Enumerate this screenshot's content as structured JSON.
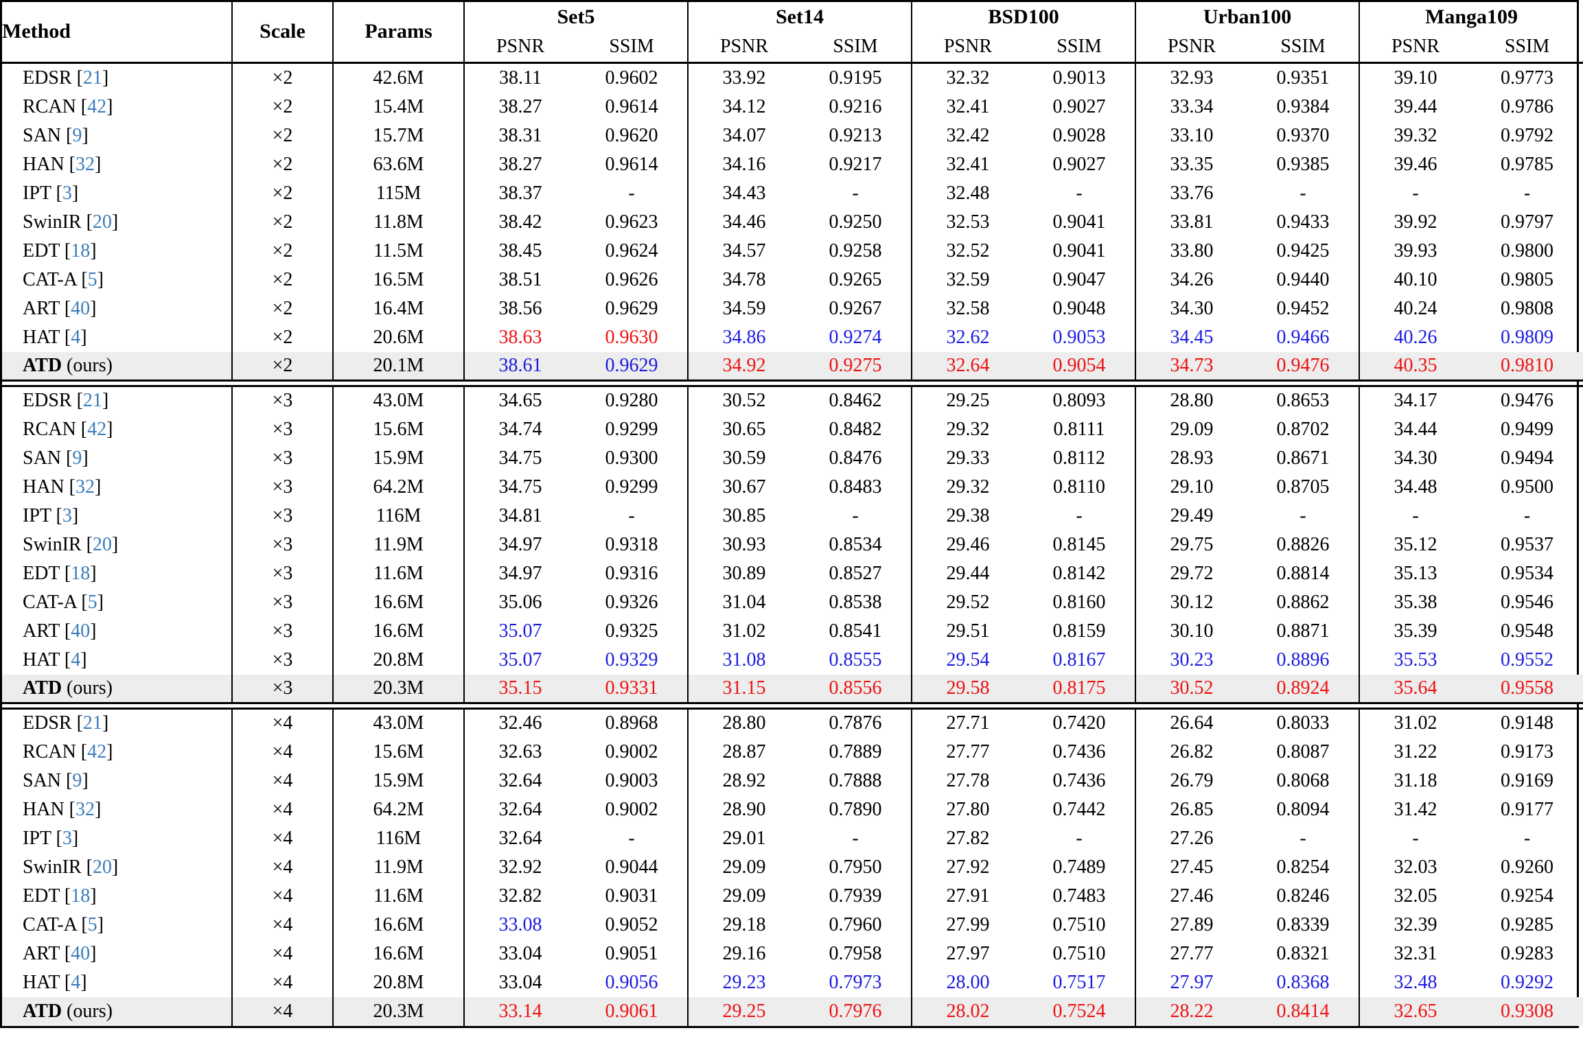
{
  "table": {
    "columns": {
      "method": "Method",
      "scale": "Scale",
      "params": "Params"
    },
    "datasets": [
      "Set5",
      "Set14",
      "BSD100",
      "Urban100",
      "Manga109"
    ],
    "metric_headers": [
      "PSNR",
      "SSIM"
    ],
    "ours_suffix": "(ours)",
    "colors": {
      "best": "#ee1111",
      "second_best": "#1b1be0",
      "citation": "#3b7cba",
      "ours_row_bg": "#ededed"
    },
    "blocks": [
      {
        "scale": "×2",
        "rows": [
          {
            "method": "EDSR",
            "cite": "21",
            "params": "42.6M",
            "values": [
              "38.11",
              "0.9602",
              "33.92",
              "0.9195",
              "32.32",
              "0.9013",
              "32.93",
              "0.9351",
              "39.10",
              "0.9773"
            ],
            "colors": "kkkkkkkkkk"
          },
          {
            "method": "RCAN",
            "cite": "42",
            "params": "15.4M",
            "values": [
              "38.27",
              "0.9614",
              "34.12",
              "0.9216",
              "32.41",
              "0.9027",
              "33.34",
              "0.9384",
              "39.44",
              "0.9786"
            ],
            "colors": "kkkkkkkkkk"
          },
          {
            "method": "SAN",
            "cite": "9",
            "params": "15.7M",
            "values": [
              "38.31",
              "0.9620",
              "34.07",
              "0.9213",
              "32.42",
              "0.9028",
              "33.10",
              "0.9370",
              "39.32",
              "0.9792"
            ],
            "colors": "kkkkkkkkkk"
          },
          {
            "method": "HAN",
            "cite": "32",
            "params": "63.6M",
            "values": [
              "38.27",
              "0.9614",
              "34.16",
              "0.9217",
              "32.41",
              "0.9027",
              "33.35",
              "0.9385",
              "39.46",
              "0.9785"
            ],
            "colors": "kkkkkkkkkk"
          },
          {
            "method": "IPT",
            "cite": "3",
            "params": "115M",
            "values": [
              "38.37",
              "-",
              "34.43",
              "-",
              "32.48",
              "-",
              "33.76",
              "-",
              "-",
              "-"
            ],
            "colors": "kkkkkkkkkk"
          },
          {
            "method": "SwinIR",
            "cite": "20",
            "params": "11.8M",
            "values": [
              "38.42",
              "0.9623",
              "34.46",
              "0.9250",
              "32.53",
              "0.9041",
              "33.81",
              "0.9433",
              "39.92",
              "0.9797"
            ],
            "colors": "kkkkkkkkkk"
          },
          {
            "method": "EDT",
            "cite": "18",
            "params": "11.5M",
            "values": [
              "38.45",
              "0.9624",
              "34.57",
              "0.9258",
              "32.52",
              "0.9041",
              "33.80",
              "0.9425",
              "39.93",
              "0.9800"
            ],
            "colors": "kkkkkkkkkk"
          },
          {
            "method": "CAT-A",
            "cite": "5",
            "params": "16.5M",
            "values": [
              "38.51",
              "0.9626",
              "34.78",
              "0.9265",
              "32.59",
              "0.9047",
              "34.26",
              "0.9440",
              "40.10",
              "0.9805"
            ],
            "colors": "kkkkkkkkkk"
          },
          {
            "method": "ART",
            "cite": "40",
            "params": "16.4M",
            "values": [
              "38.56",
              "0.9629",
              "34.59",
              "0.9267",
              "32.58",
              "0.9048",
              "34.30",
              "0.9452",
              "40.24",
              "0.9808"
            ],
            "colors": "kkkkkkkkkk"
          },
          {
            "method": "HAT",
            "cite": "4",
            "params": "20.6M",
            "values": [
              "38.63",
              "0.9630",
              "34.86",
              "0.9274",
              "32.62",
              "0.9053",
              "34.45",
              "0.9466",
              "40.26",
              "0.9809"
            ],
            "colors": "rrbbbbbbbb"
          },
          {
            "method": "ATD",
            "ours": true,
            "params": "20.1M",
            "values": [
              "38.61",
              "0.9629",
              "34.92",
              "0.9275",
              "32.64",
              "0.9054",
              "34.73",
              "0.9476",
              "40.35",
              "0.9810"
            ],
            "colors": "bbrrrrrrrr"
          }
        ]
      },
      {
        "scale": "×3",
        "rows": [
          {
            "method": "EDSR",
            "cite": "21",
            "params": "43.0M",
            "values": [
              "34.65",
              "0.9280",
              "30.52",
              "0.8462",
              "29.25",
              "0.8093",
              "28.80",
              "0.8653",
              "34.17",
              "0.9476"
            ],
            "colors": "kkkkkkkkkk"
          },
          {
            "method": "RCAN",
            "cite": "42",
            "params": "15.6M",
            "values": [
              "34.74",
              "0.9299",
              "30.65",
              "0.8482",
              "29.32",
              "0.8111",
              "29.09",
              "0.8702",
              "34.44",
              "0.9499"
            ],
            "colors": "kkkkkkkkkk"
          },
          {
            "method": "SAN",
            "cite": "9",
            "params": "15.9M",
            "values": [
              "34.75",
              "0.9300",
              "30.59",
              "0.8476",
              "29.33",
              "0.8112",
              "28.93",
              "0.8671",
              "34.30",
              "0.9494"
            ],
            "colors": "kkkkkkkkkk"
          },
          {
            "method": "HAN",
            "cite": "32",
            "params": "64.2M",
            "values": [
              "34.75",
              "0.9299",
              "30.67",
              "0.8483",
              "29.32",
              "0.8110",
              "29.10",
              "0.8705",
              "34.48",
              "0.9500"
            ],
            "colors": "kkkkkkkkkk"
          },
          {
            "method": "IPT",
            "cite": "3",
            "params": "116M",
            "values": [
              "34.81",
              "-",
              "30.85",
              "-",
              "29.38",
              "-",
              "29.49",
              "-",
              "-",
              "-"
            ],
            "colors": "kkkkkkkkkk"
          },
          {
            "method": "SwinIR",
            "cite": "20",
            "params": "11.9M",
            "values": [
              "34.97",
              "0.9318",
              "30.93",
              "0.8534",
              "29.46",
              "0.8145",
              "29.75",
              "0.8826",
              "35.12",
              "0.9537"
            ],
            "colors": "kkkkkkkkkk"
          },
          {
            "method": "EDT",
            "cite": "18",
            "params": "11.6M",
            "values": [
              "34.97",
              "0.9316",
              "30.89",
              "0.8527",
              "29.44",
              "0.8142",
              "29.72",
              "0.8814",
              "35.13",
              "0.9534"
            ],
            "colors": "kkkkkkkkkk"
          },
          {
            "method": "CAT-A",
            "cite": "5",
            "params": "16.6M",
            "values": [
              "35.06",
              "0.9326",
              "31.04",
              "0.8538",
              "29.52",
              "0.8160",
              "30.12",
              "0.8862",
              "35.38",
              "0.9546"
            ],
            "colors": "kkkkkkkkkk"
          },
          {
            "method": "ART",
            "cite": "40",
            "params": "16.6M",
            "values": [
              "35.07",
              "0.9325",
              "31.02",
              "0.8541",
              "29.51",
              "0.8159",
              "30.10",
              "0.8871",
              "35.39",
              "0.9548"
            ],
            "colors": "bkkkkkkkkk"
          },
          {
            "method": "HAT",
            "cite": "4",
            "params": "20.8M",
            "values": [
              "35.07",
              "0.9329",
              "31.08",
              "0.8555",
              "29.54",
              "0.8167",
              "30.23",
              "0.8896",
              "35.53",
              "0.9552"
            ],
            "colors": "bbbbbbbbbb"
          },
          {
            "method": "ATD",
            "ours": true,
            "params": "20.3M",
            "values": [
              "35.15",
              "0.9331",
              "31.15",
              "0.8556",
              "29.58",
              "0.8175",
              "30.52",
              "0.8924",
              "35.64",
              "0.9558"
            ],
            "colors": "rrrrrrrrrr"
          }
        ]
      },
      {
        "scale": "×4",
        "rows": [
          {
            "method": "EDSR",
            "cite": "21",
            "params": "43.0M",
            "values": [
              "32.46",
              "0.8968",
              "28.80",
              "0.7876",
              "27.71",
              "0.7420",
              "26.64",
              "0.8033",
              "31.02",
              "0.9148"
            ],
            "colors": "kkkkkkkkkk"
          },
          {
            "method": "RCAN",
            "cite": "42",
            "params": "15.6M",
            "values": [
              "32.63",
              "0.9002",
              "28.87",
              "0.7889",
              "27.77",
              "0.7436",
              "26.82",
              "0.8087",
              "31.22",
              "0.9173"
            ],
            "colors": "kkkkkkkkkk"
          },
          {
            "method": "SAN",
            "cite": "9",
            "params": "15.9M",
            "values": [
              "32.64",
              "0.9003",
              "28.92",
              "0.7888",
              "27.78",
              "0.7436",
              "26.79",
              "0.8068",
              "31.18",
              "0.9169"
            ],
            "colors": "kkkkkkkkkk"
          },
          {
            "method": "HAN",
            "cite": "32",
            "params": "64.2M",
            "values": [
              "32.64",
              "0.9002",
              "28.90",
              "0.7890",
              "27.80",
              "0.7442",
              "26.85",
              "0.8094",
              "31.42",
              "0.9177"
            ],
            "colors": "kkkkkkkkkk"
          },
          {
            "method": "IPT",
            "cite": "3",
            "params": "116M",
            "values": [
              "32.64",
              "-",
              "29.01",
              "-",
              "27.82",
              "-",
              "27.26",
              "-",
              "-",
              "-"
            ],
            "colors": "kkkkkkkkkk"
          },
          {
            "method": "SwinIR",
            "cite": "20",
            "params": "11.9M",
            "values": [
              "32.92",
              "0.9044",
              "29.09",
              "0.7950",
              "27.92",
              "0.7489",
              "27.45",
              "0.8254",
              "32.03",
              "0.9260"
            ],
            "colors": "kkkkkkkkkk"
          },
          {
            "method": "EDT",
            "cite": "18",
            "params": "11.6M",
            "values": [
              "32.82",
              "0.9031",
              "29.09",
              "0.7939",
              "27.91",
              "0.7483",
              "27.46",
              "0.8246",
              "32.05",
              "0.9254"
            ],
            "colors": "kkkkkkkkkk"
          },
          {
            "method": "CAT-A",
            "cite": "5",
            "params": "16.6M",
            "values": [
              "33.08",
              "0.9052",
              "29.18",
              "0.7960",
              "27.99",
              "0.7510",
              "27.89",
              "0.8339",
              "32.39",
              "0.9285"
            ],
            "colors": "bkkkkkkkkk"
          },
          {
            "method": "ART",
            "cite": "40",
            "params": "16.6M",
            "values": [
              "33.04",
              "0.9051",
              "29.16",
              "0.7958",
              "27.97",
              "0.7510",
              "27.77",
              "0.8321",
              "32.31",
              "0.9283"
            ],
            "colors": "kkkkkkkkkk"
          },
          {
            "method": "HAT",
            "cite": "4",
            "params": "20.8M",
            "values": [
              "33.04",
              "0.9056",
              "29.23",
              "0.7973",
              "28.00",
              "0.7517",
              "27.97",
              "0.8368",
              "32.48",
              "0.9292"
            ],
            "colors": "kbbbbbbbbb"
          },
          {
            "method": "ATD",
            "ours": true,
            "params": "20.3M",
            "values": [
              "33.14",
              "0.9061",
              "29.25",
              "0.7976",
              "28.02",
              "0.7524",
              "28.22",
              "0.8414",
              "32.65",
              "0.9308"
            ],
            "colors": "rrrrrrrrrr"
          }
        ]
      }
    ]
  }
}
